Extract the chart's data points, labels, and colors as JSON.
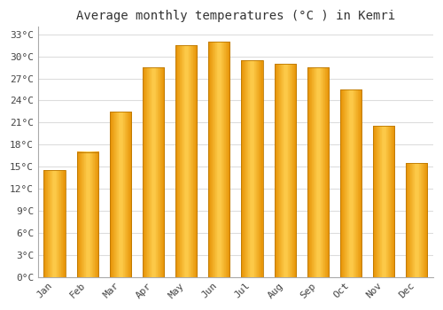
{
  "title": "Average monthly temperatures (°C ) in Kemri",
  "months": [
    "Jan",
    "Feb",
    "Mar",
    "Apr",
    "May",
    "Jun",
    "Jul",
    "Aug",
    "Sep",
    "Oct",
    "Nov",
    "Dec"
  ],
  "temperatures": [
    14.5,
    17.0,
    22.5,
    28.5,
    31.5,
    32.0,
    29.5,
    29.0,
    28.5,
    25.5,
    20.5,
    15.5
  ],
  "bar_color": "#FFA500",
  "bar_edge_color": "#CC8800",
  "ylim": [
    0,
    34
  ],
  "yticks": [
    0,
    3,
    6,
    9,
    12,
    15,
    18,
    21,
    24,
    27,
    30,
    33
  ],
  "ytick_labels": [
    "0°C",
    "3°C",
    "6°C",
    "9°C",
    "12°C",
    "15°C",
    "18°C",
    "21°C",
    "24°C",
    "27°C",
    "30°C",
    "33°C"
  ],
  "bg_color": "#FFFFFF",
  "plot_bg_color": "#FFFFFF",
  "grid_color": "#DDDDDD",
  "title_fontsize": 10,
  "tick_fontsize": 8,
  "font_family": "monospace",
  "bar_width": 0.65
}
